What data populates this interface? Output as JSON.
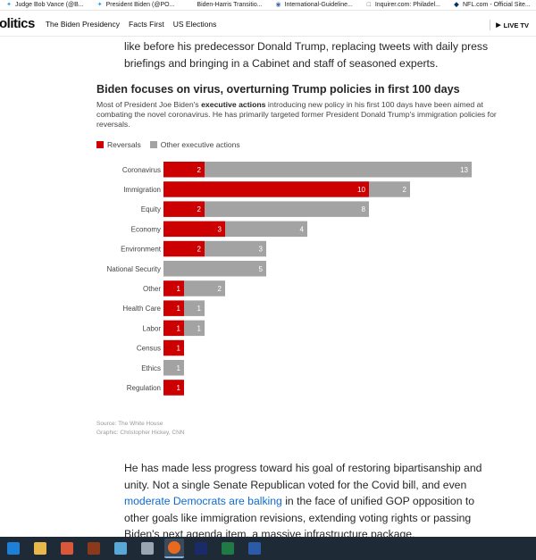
{
  "bookmarks": [
    {
      "icon": "twitter-icon",
      "label": "Judge Bob Vance (@B..."
    },
    {
      "icon": "twitter-icon",
      "label": "President Biden (@PO..."
    },
    {
      "icon": "page-icon",
      "label": "Biden-Harris Transitio..."
    },
    {
      "icon": "globe-icon",
      "label": "International-Guideline..."
    },
    {
      "icon": "inquirer-icon",
      "label": "Inquirer.com: Philadel..."
    },
    {
      "icon": "nfl-icon",
      "label": "NFL.com - Official Site..."
    }
  ],
  "site": {
    "logo": "olitics",
    "nav": [
      "The Biden Presidency",
      "Facts First",
      "US Elections"
    ],
    "live": "LIVE TV"
  },
  "article": {
    "top_paragraph": "like before his predecessor Donald Trump, replacing tweets with daily press briefings and bringing in a Cabinet and staff of seasoned experts.",
    "bottom_before_link": "He has made less progress toward his goal of restoring bipartisanship and unity. Not a single Senate Republican voted for the Covid bill, and even ",
    "bottom_link": "moderate Democrats are balking",
    "bottom_after_link": " in the face of unified GOP opposition to other goals like immigration revisions, extending voting rights or passing Biden's next agenda item, a massive infrastructure package."
  },
  "chart_data": {
    "type": "bar",
    "orientation": "horizontal",
    "stacked": true,
    "title": "Biden focuses on virus, overturning Trump policies in first 100 days",
    "subtitle_before": "Most of President Joe Biden's ",
    "subtitle_bold": "executive actions",
    "subtitle_after": " introducing new policy in his first 100 days have been aimed at combating the novel coronavirus. He has primarily targeted former President Donald Trump's immigration policies for reversals.",
    "categories": [
      "Coronavirus",
      "Immigration",
      "Equity",
      "Economy",
      "Environment",
      "National Security",
      "Other",
      "Health Care",
      "Labor",
      "Census",
      "Ethics",
      "Regulation"
    ],
    "series": [
      {
        "name": "Reversals",
        "color": "#cc0000",
        "values": [
          2,
          10,
          2,
          3,
          2,
          0,
          1,
          1,
          1,
          1,
          0,
          1
        ]
      },
      {
        "name": "Other executive actions",
        "color": "#a3a3a3",
        "values": [
          13,
          2,
          8,
          4,
          3,
          5,
          2,
          1,
          1,
          0,
          1,
          0
        ]
      }
    ],
    "legend_position": "top-left",
    "grid": false,
    "source": "Source: The White House",
    "credit": "Graphic: Christopher Hickey, CNN"
  },
  "taskbar": {
    "icons": [
      "windows-icon",
      "file-explorer-icon",
      "media-player-icon",
      "game-icon",
      "network-icon",
      "calculator-icon",
      "firefox-icon",
      "photo-app-icon",
      "excel-icon",
      "word-icon"
    ]
  }
}
